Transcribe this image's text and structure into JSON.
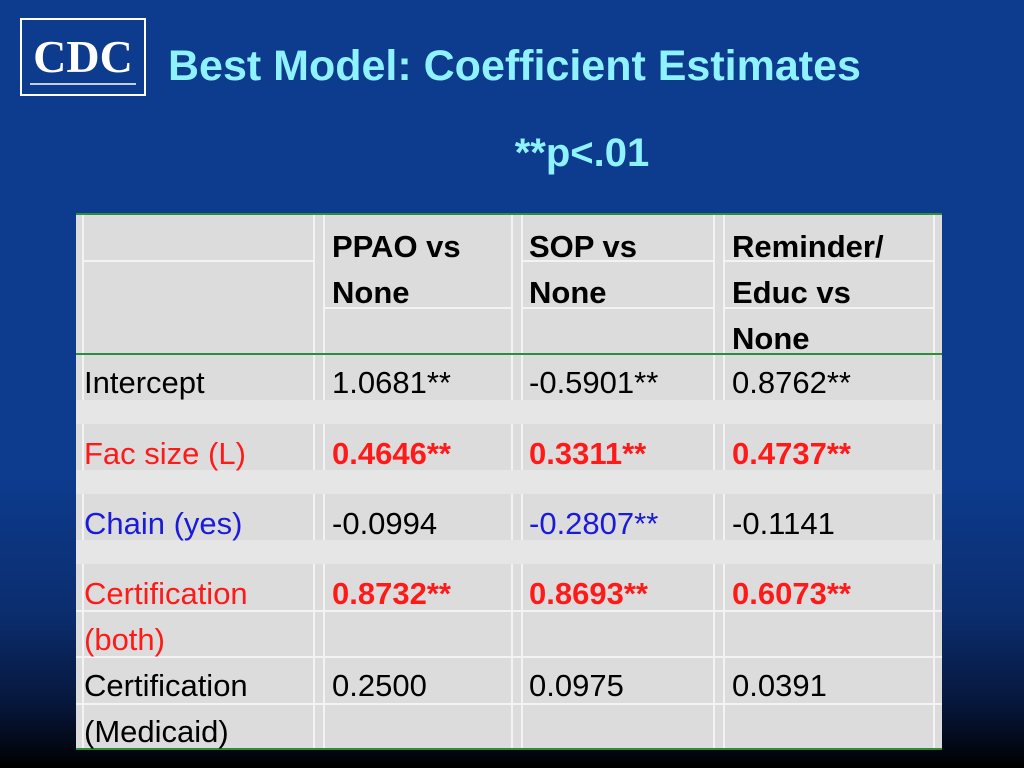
{
  "logo": {
    "text": "CDC"
  },
  "title": "Best Model:  Coefficient Estimates",
  "subtitle": "**p<.01",
  "table": {
    "columns": [
      "",
      "PPAO vs None",
      "SOP vs None",
      "Reminder/ Educ vs None"
    ],
    "header_lines": [
      [
        "PPAO vs",
        "None"
      ],
      [
        "SOP vs",
        "None"
      ],
      [
        "Reminder/",
        "Educ vs",
        "None"
      ]
    ],
    "rows": [
      {
        "label": [
          "Intercept"
        ],
        "values": [
          "1.0681**",
          "-0.5901**",
          "0.8762**"
        ],
        "label_color": "#000000",
        "value_style": "normal"
      },
      {
        "label": [
          "Fac size (L)"
        ],
        "values": [
          "0.4646**",
          "0.3311**",
          "0.4737**"
        ],
        "label_color": "#ff1a1a",
        "value_style": "red-bold"
      },
      {
        "label": [
          "Chain (yes)"
        ],
        "values": [
          "-0.0994",
          "-0.2807**",
          "-0.1141"
        ],
        "label_color": "#1a1adb",
        "value_style": "mixed-blue"
      },
      {
        "label": [
          "Certification",
          "(both)"
        ],
        "values": [
          "0.8732**",
          "0.8693**",
          "0.6073**"
        ],
        "label_color": "#ff1a1a",
        "value_style": "red-bold"
      },
      {
        "label": [
          "Certification",
          "(Medicaid)"
        ],
        "values": [
          "0.2500",
          "0.0975",
          "0.0391"
        ],
        "label_color": "#000000",
        "value_style": "normal"
      }
    ]
  },
  "colors": {
    "background": "#0d3b8e",
    "title": "#8ff2ff",
    "significant": "#ff1a1a",
    "chain": "#1a1adb",
    "rule": "#2a8f3a"
  }
}
